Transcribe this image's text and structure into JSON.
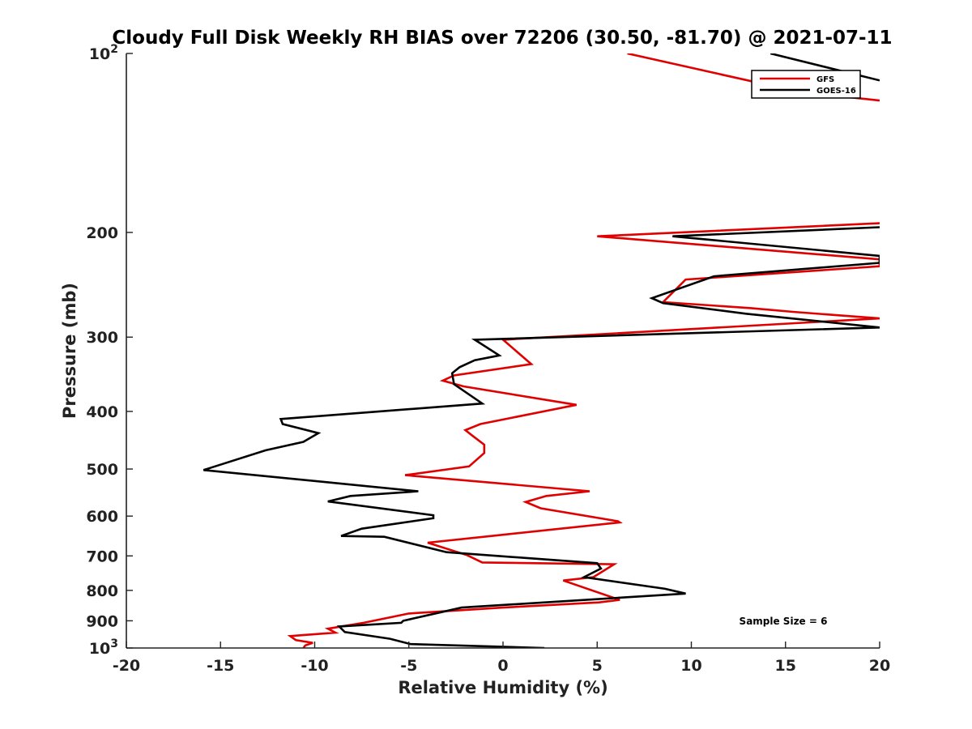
{
  "chart_data": {
    "type": "line",
    "title": "Cloudy Full Disk Weekly RH BIAS over 72206 (30.50, -81.70) @ 2021-07-11",
    "xlabel": "Relative Humidity (%)",
    "ylabel": "Pressure (mb)",
    "xlim": [
      -20,
      20
    ],
    "ylim": [
      100,
      1000
    ],
    "yscale": "log",
    "y_reversed": true,
    "grid": false,
    "legend_position": "top-right",
    "x_ticks": [
      "-20",
      "-15",
      "-10",
      "-5",
      "0",
      "5",
      "10",
      "15",
      "20"
    ],
    "y_ticks": [
      {
        "value": 100,
        "base": "10",
        "exp": "2"
      },
      {
        "value": 200,
        "label": "200"
      },
      {
        "value": 300,
        "label": "300"
      },
      {
        "value": 400,
        "label": "400"
      },
      {
        "value": 500,
        "label": "500"
      },
      {
        "value": 600,
        "label": "600"
      },
      {
        "value": 700,
        "label": "700"
      },
      {
        "value": 800,
        "label": "800"
      },
      {
        "value": 900,
        "label": "900"
      },
      {
        "value": 1000,
        "base": "10",
        "exp": "3"
      }
    ],
    "series": [
      {
        "name": "GFS",
        "color": "#e00000",
        "x": [
          -10.6,
          -10.5,
          -10.1,
          -11.0,
          -11.3,
          -8.9,
          -9.3,
          -7.4,
          -5.0,
          0.0,
          5.1,
          6.2,
          3.2,
          4.8,
          5.9,
          -1.1,
          -1.9,
          -4.0,
          0.0,
          6.2,
          6.1,
          2.0,
          1.2,
          2.3,
          4.6,
          -5.2,
          -1.8,
          -1.0,
          -1.0,
          -1.6,
          -2.0,
          -1.2,
          3.9,
          -2.1,
          -3.2,
          -2.6,
          1.5,
          0.0,
          20.0,
          15.4,
          13.1,
          8.5,
          9.7,
          20.0,
          20.0,
          5.0,
          20.0
        ],
        "y": [
          1000,
          990,
          980,
          970,
          955,
          942,
          928,
          907,
          875,
          855,
          838,
          830,
          770,
          760,
          723,
          718,
          698,
          665,
          645,
          615,
          612,
          582,
          568,
          555,
          545,
          512,
          495,
          470,
          455,
          440,
          430,
          420,
          390,
          363,
          355,
          348,
          333,
          303,
          279,
          272,
          268,
          262,
          240,
          228,
          222,
          203,
          193
        ],
        "upper_x": [
          6.6,
          15.7,
          20.0
        ],
        "upper_y": [
          100,
          116,
          120
        ]
      },
      {
        "name": "GOES-16",
        "color": "#000000",
        "x": [
          2.2,
          -4.9,
          -6.0,
          -8.4,
          -8.7,
          -5.4,
          -5.3,
          -2.2,
          9.7,
          8.6,
          4.3,
          5.2,
          5.0,
          -3.0,
          -6.3,
          -8.6,
          -7.5,
          -3.7,
          -3.7,
          -9.3,
          -8.1,
          -4.5,
          -15.9,
          -12.6,
          -10.6,
          -9.8,
          -11.7,
          -11.8,
          -1.1,
          -2.6,
          -2.7,
          -2.3,
          -1.5,
          -0.2,
          -1.5,
          20.0,
          12.9,
          8.5,
          7.9,
          11.2,
          20.0,
          20.0,
          9.0,
          20.0
        ],
        "y": [
          1000,
          985,
          965,
          940,
          920,
          907,
          900,
          855,
          810,
          795,
          760,
          735,
          720,
          690,
          650,
          648,
          630,
          605,
          598,
          567,
          555,
          545,
          502,
          465,
          450,
          435,
          420,
          412,
          388,
          360,
          345,
          337,
          328,
          322,
          303,
          289,
          274,
          263,
          258,
          237,
          225,
          219,
          203,
          196
        ],
        "upper_x": [
          14.2,
          20.0
        ],
        "upper_y": [
          100,
          111
        ]
      }
    ],
    "annotations": [
      "Sample Size = 6"
    ]
  }
}
